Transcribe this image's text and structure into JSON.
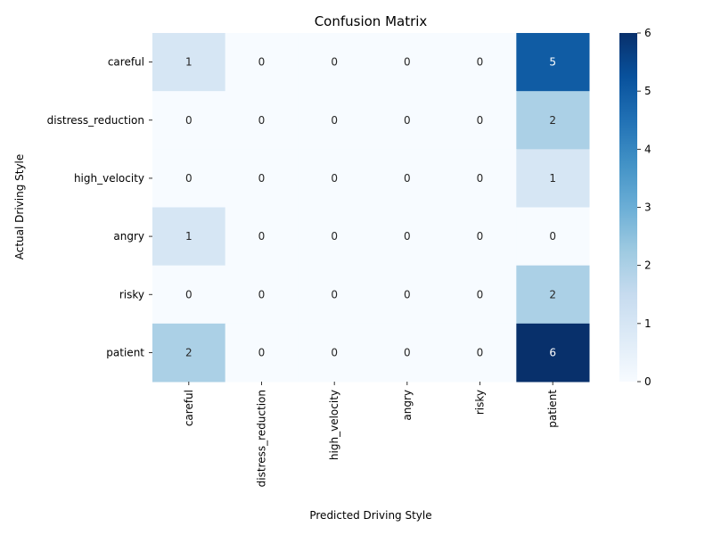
{
  "chart_data": {
    "type": "heatmap",
    "title": "Confusion Matrix",
    "xlabel": "Predicted Driving Style",
    "ylabel": "Actual Driving Style",
    "x_categories": [
      "careful",
      "distress_reduction",
      "high_velocity",
      "angry",
      "risky",
      "patient"
    ],
    "y_categories": [
      "careful",
      "distress_reduction",
      "high_velocity",
      "angry",
      "risky",
      "patient"
    ],
    "values": [
      [
        1,
        0,
        0,
        0,
        0,
        5
      ],
      [
        0,
        0,
        0,
        0,
        0,
        2
      ],
      [
        0,
        0,
        0,
        0,
        0,
        1
      ],
      [
        1,
        0,
        0,
        0,
        0,
        0
      ],
      [
        0,
        0,
        0,
        0,
        0,
        2
      ],
      [
        2,
        0,
        0,
        0,
        0,
        6
      ]
    ],
    "colormap": "Blues",
    "colorbar": {
      "range": [
        0,
        6
      ],
      "ticks": [
        0,
        1,
        2,
        3,
        4,
        5,
        6
      ]
    },
    "grid": false
  }
}
